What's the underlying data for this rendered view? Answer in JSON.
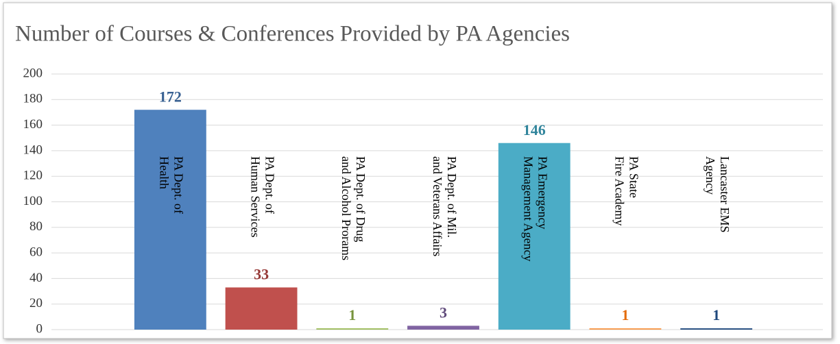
{
  "chart_data": {
    "type": "bar",
    "title": "Number of Courses & Conferences Provided by PA Agencies",
    "categories": [
      [
        "PA Dept. of",
        "Health"
      ],
      [
        "PA Dept. of",
        "Human Services"
      ],
      [
        "PA Dept. of Drug",
        "and Alcohol Prorams"
      ],
      [
        "PA Dept. of Mil.",
        "and Veterans Affairs"
      ],
      [
        "PA Emergency",
        "Management Agency"
      ],
      [
        "PA State",
        "Fire Academy"
      ],
      [
        "Lancaster EMS",
        "Agency"
      ]
    ],
    "values": [
      172,
      33,
      1,
      3,
      146,
      1,
      1
    ],
    "colors": [
      "#4f81bd",
      "#c0504d",
      "#9bbb59",
      "#8064a2",
      "#4bacc6",
      "#f79646",
      "#1f497d"
    ],
    "label_colors": [
      "#376092",
      "#953735",
      "#77933c",
      "#604a7b",
      "#31859c",
      "#e46c0a",
      "#1f497d"
    ],
    "ylim": [
      0,
      200
    ],
    "yticks": [
      0,
      20,
      40,
      60,
      80,
      100,
      120,
      140,
      160,
      180,
      200
    ],
    "grid": true
  }
}
